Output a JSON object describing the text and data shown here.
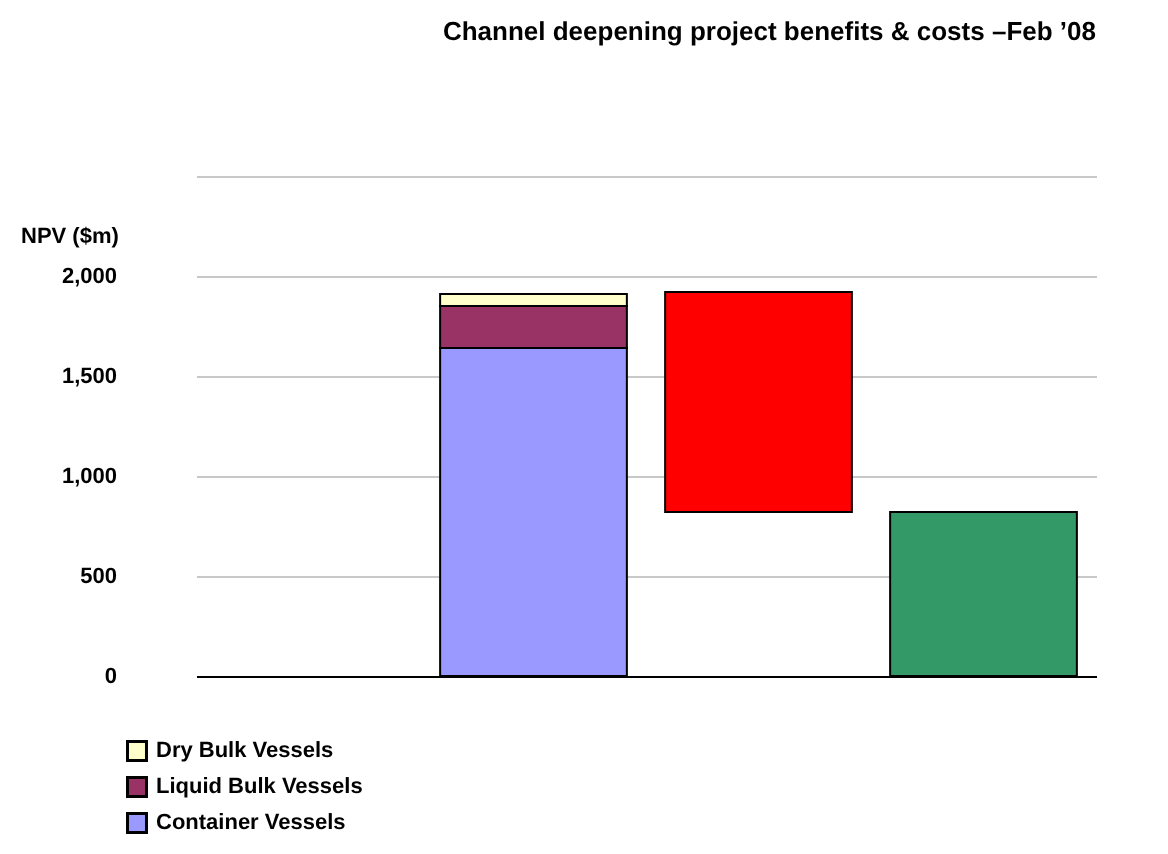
{
  "chart_data": {
    "type": "bar",
    "title": "Channel deepening project benefits & costs –Feb ’08",
    "ylabel": "NPV ($m)",
    "categories": [
      null,
      null,
      null,
      null
    ],
    "stacked": true,
    "series": [
      {
        "name": "Container Vessels",
        "color": "#9999ff",
        "values": [
          null,
          1640,
          null,
          null
        ]
      },
      {
        "name": "Liquid Bulk Vessels",
        "color": "#993366",
        "values": [
          null,
          210,
          null,
          null
        ]
      },
      {
        "name": "Dry Bulk Vessels",
        "color": "#ffffcc",
        "values": [
          null,
          60,
          null,
          null
        ]
      },
      {
        "color": "#ff0000",
        "values": [
          null,
          null,
          1100,
          null
        ],
        "base": [
          null,
          null,
          820,
          null
        ]
      },
      {
        "color": "#339966",
        "values": [
          null,
          null,
          null,
          820
        ]
      }
    ],
    "ylim": [
      0,
      2500
    ],
    "yticks": [
      0,
      500,
      {
        "value": 1000,
        "label": "1,000"
      },
      {
        "value": 1500,
        "label": "1,500"
      },
      {
        "value": 2000,
        "label": "2,000"
      },
      {
        "value": 2500,
        "label": null
      }
    ],
    "grid": "y",
    "legend": "bottom left"
  }
}
